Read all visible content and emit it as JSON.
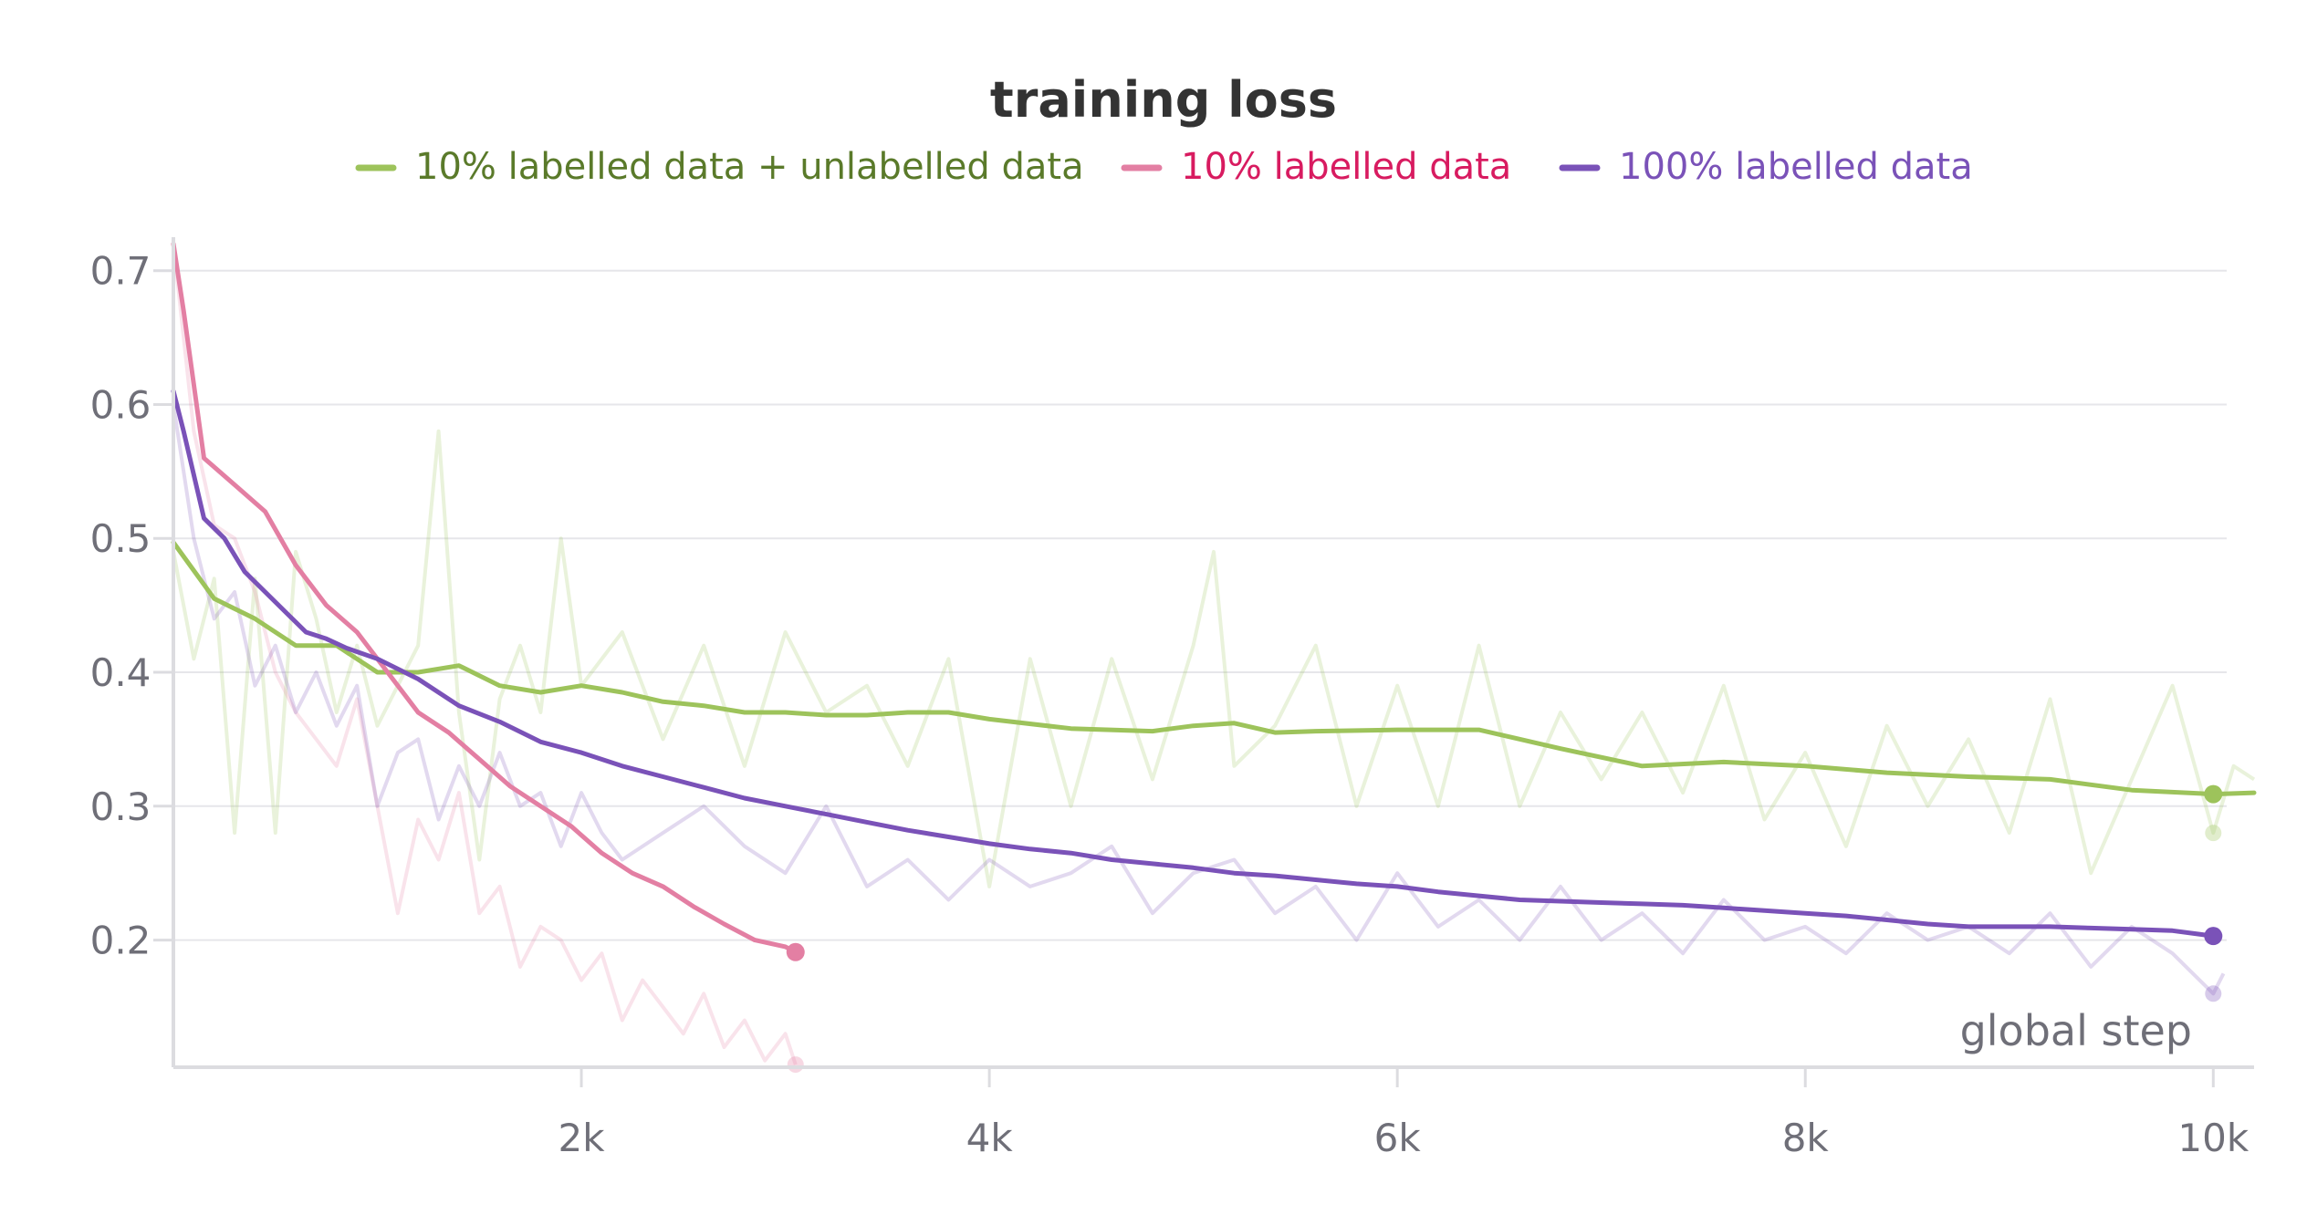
{
  "chart_data": {
    "type": "line",
    "title": "training loss",
    "xlabel": "global step",
    "ylabel": "",
    "xlim": [
      0,
      10200
    ],
    "ylim": [
      0.105,
      0.725
    ],
    "xticks": [
      2000,
      4000,
      6000,
      8000,
      10000
    ],
    "xtick_labels": [
      "2k",
      "4k",
      "6k",
      "8k",
      "10k"
    ],
    "yticks": [
      0.2,
      0.3,
      0.4,
      0.5,
      0.6,
      0.7
    ],
    "ytick_labels": [
      "0.2",
      "0.3",
      "0.4",
      "0.5",
      "0.6",
      "0.7"
    ],
    "grid": true,
    "legend_position": "top-center",
    "series": [
      {
        "name": "10% labelled data + unlabelled data",
        "color": "#9dc35b",
        "text_color": "#5a7a2a",
        "x": [
          0,
          200,
          400,
          600,
          800,
          1000,
          1200,
          1400,
          1600,
          1800,
          2000,
          2200,
          2400,
          2600,
          2800,
          3000,
          3200,
          3400,
          3600,
          3800,
          4000,
          4400,
          4800,
          5000,
          5200,
          5400,
          5600,
          6000,
          6400,
          6800,
          7200,
          7600,
          8000,
          8400,
          8800,
          9200,
          9600,
          10000,
          10200
        ],
        "values": [
          0.497,
          0.455,
          0.44,
          0.42,
          0.42,
          0.4,
          0.4,
          0.405,
          0.39,
          0.385,
          0.39,
          0.385,
          0.378,
          0.375,
          0.37,
          0.37,
          0.368,
          0.368,
          0.37,
          0.37,
          0.365,
          0.358,
          0.356,
          0.36,
          0.362,
          0.355,
          0.356,
          0.357,
          0.357,
          0.343,
          0.33,
          0.333,
          0.33,
          0.325,
          0.322,
          0.32,
          0.312,
          0.309,
          0.31
        ],
        "raw_x": [
          0,
          100,
          200,
          300,
          400,
          500,
          600,
          700,
          800,
          900,
          1000,
          1100,
          1200,
          1300,
          1400,
          1500,
          1600,
          1700,
          1800,
          1900,
          2000,
          2200,
          2400,
          2600,
          2800,
          3000,
          3200,
          3400,
          3600,
          3800,
          4000,
          4200,
          4400,
          4600,
          4800,
          5000,
          5100,
          5200,
          5400,
          5600,
          5800,
          6000,
          6200,
          6400,
          6600,
          6800,
          7000,
          7200,
          7400,
          7600,
          7800,
          8000,
          8200,
          8400,
          8600,
          8800,
          9000,
          9200,
          9400,
          9600,
          9800,
          10000,
          10100,
          10200
        ],
        "raw_values": [
          0.49,
          0.41,
          0.47,
          0.28,
          0.47,
          0.28,
          0.49,
          0.44,
          0.37,
          0.42,
          0.36,
          0.39,
          0.42,
          0.58,
          0.37,
          0.26,
          0.38,
          0.42,
          0.37,
          0.5,
          0.39,
          0.43,
          0.35,
          0.42,
          0.33,
          0.43,
          0.37,
          0.39,
          0.33,
          0.41,
          0.24,
          0.41,
          0.3,
          0.41,
          0.32,
          0.42,
          0.49,
          0.33,
          0.36,
          0.42,
          0.3,
          0.39,
          0.3,
          0.42,
          0.3,
          0.37,
          0.32,
          0.37,
          0.31,
          0.39,
          0.29,
          0.34,
          0.27,
          0.36,
          0.3,
          0.35,
          0.28,
          0.38,
          0.25,
          0.32,
          0.39,
          0.28,
          0.33,
          0.32
        ]
      },
      {
        "name": "10% labelled data",
        "color": "#e37fa3",
        "text_color": "#d81b60",
        "x": [
          0,
          50,
          150,
          300,
          450,
          600,
          750,
          900,
          1050,
          1200,
          1350,
          1500,
          1650,
          1800,
          1950,
          2100,
          2250,
          2400,
          2550,
          2700,
          2850,
          3000,
          3050
        ],
        "values": [
          0.72,
          0.67,
          0.56,
          0.54,
          0.52,
          0.48,
          0.45,
          0.43,
          0.4,
          0.37,
          0.355,
          0.335,
          0.315,
          0.3,
          0.285,
          0.265,
          0.25,
          0.24,
          0.225,
          0.212,
          0.2,
          0.195,
          0.191
        ],
        "raw_x": [
          0,
          100,
          200,
          300,
          400,
          500,
          600,
          700,
          800,
          900,
          1000,
          1100,
          1200,
          1300,
          1400,
          1500,
          1600,
          1700,
          1800,
          1900,
          2000,
          2100,
          2200,
          2300,
          2400,
          2500,
          2600,
          2700,
          2800,
          2900,
          3000,
          3050
        ],
        "raw_values": [
          0.72,
          0.58,
          0.51,
          0.5,
          0.46,
          0.4,
          0.37,
          0.35,
          0.33,
          0.38,
          0.3,
          0.22,
          0.29,
          0.26,
          0.31,
          0.22,
          0.24,
          0.18,
          0.21,
          0.2,
          0.17,
          0.19,
          0.14,
          0.17,
          0.15,
          0.13,
          0.16,
          0.12,
          0.14,
          0.11,
          0.13,
          0.107
        ]
      },
      {
        "name": "100% labelled data",
        "color": "#7a52b8",
        "text_color": "#7a52b8",
        "x": [
          0,
          50,
          150,
          250,
          350,
          450,
          550,
          650,
          750,
          850,
          1000,
          1200,
          1400,
          1600,
          1800,
          2000,
          2200,
          2400,
          2600,
          2800,
          3000,
          3200,
          3400,
          3600,
          3800,
          4000,
          4200,
          4400,
          4600,
          4800,
          5000,
          5200,
          5400,
          5600,
          5800,
          6000,
          6200,
          6400,
          6600,
          6800,
          7000,
          7200,
          7400,
          7600,
          7800,
          8000,
          8200,
          8400,
          8600,
          8800,
          9000,
          9200,
          9400,
          9600,
          9800,
          10000
        ],
        "values": [
          0.61,
          0.58,
          0.515,
          0.5,
          0.475,
          0.46,
          0.445,
          0.43,
          0.425,
          0.418,
          0.41,
          0.395,
          0.375,
          0.363,
          0.348,
          0.34,
          0.33,
          0.322,
          0.314,
          0.306,
          0.3,
          0.294,
          0.288,
          0.282,
          0.277,
          0.272,
          0.268,
          0.265,
          0.26,
          0.257,
          0.254,
          0.25,
          0.248,
          0.245,
          0.242,
          0.24,
          0.236,
          0.233,
          0.23,
          0.229,
          0.228,
          0.227,
          0.226,
          0.224,
          0.222,
          0.22,
          0.218,
          0.215,
          0.212,
          0.21,
          0.21,
          0.21,
          0.209,
          0.208,
          0.207,
          0.203
        ],
        "raw_x": [
          0,
          100,
          200,
          300,
          400,
          500,
          600,
          700,
          800,
          900,
          1000,
          1100,
          1200,
          1300,
          1400,
          1500,
          1600,
          1700,
          1800,
          1900,
          2000,
          2100,
          2200,
          2400,
          2600,
          2800,
          3000,
          3200,
          3400,
          3600,
          3800,
          4000,
          4200,
          4400,
          4600,
          4800,
          5000,
          5200,
          5400,
          5600,
          5800,
          6000,
          6200,
          6400,
          6600,
          6800,
          7000,
          7200,
          7400,
          7600,
          7800,
          8000,
          8200,
          8400,
          8600,
          8800,
          9000,
          9200,
          9400,
          9600,
          9800,
          10000,
          10050
        ],
        "raw_values": [
          0.6,
          0.5,
          0.44,
          0.46,
          0.39,
          0.42,
          0.37,
          0.4,
          0.36,
          0.39,
          0.3,
          0.34,
          0.35,
          0.29,
          0.33,
          0.3,
          0.34,
          0.3,
          0.31,
          0.27,
          0.31,
          0.28,
          0.26,
          0.28,
          0.3,
          0.27,
          0.25,
          0.3,
          0.24,
          0.26,
          0.23,
          0.26,
          0.24,
          0.25,
          0.27,
          0.22,
          0.25,
          0.26,
          0.22,
          0.24,
          0.2,
          0.25,
          0.21,
          0.23,
          0.2,
          0.24,
          0.2,
          0.22,
          0.19,
          0.23,
          0.2,
          0.21,
          0.19,
          0.22,
          0.2,
          0.21,
          0.19,
          0.22,
          0.18,
          0.21,
          0.19,
          0.16,
          0.175
        ]
      }
    ]
  }
}
